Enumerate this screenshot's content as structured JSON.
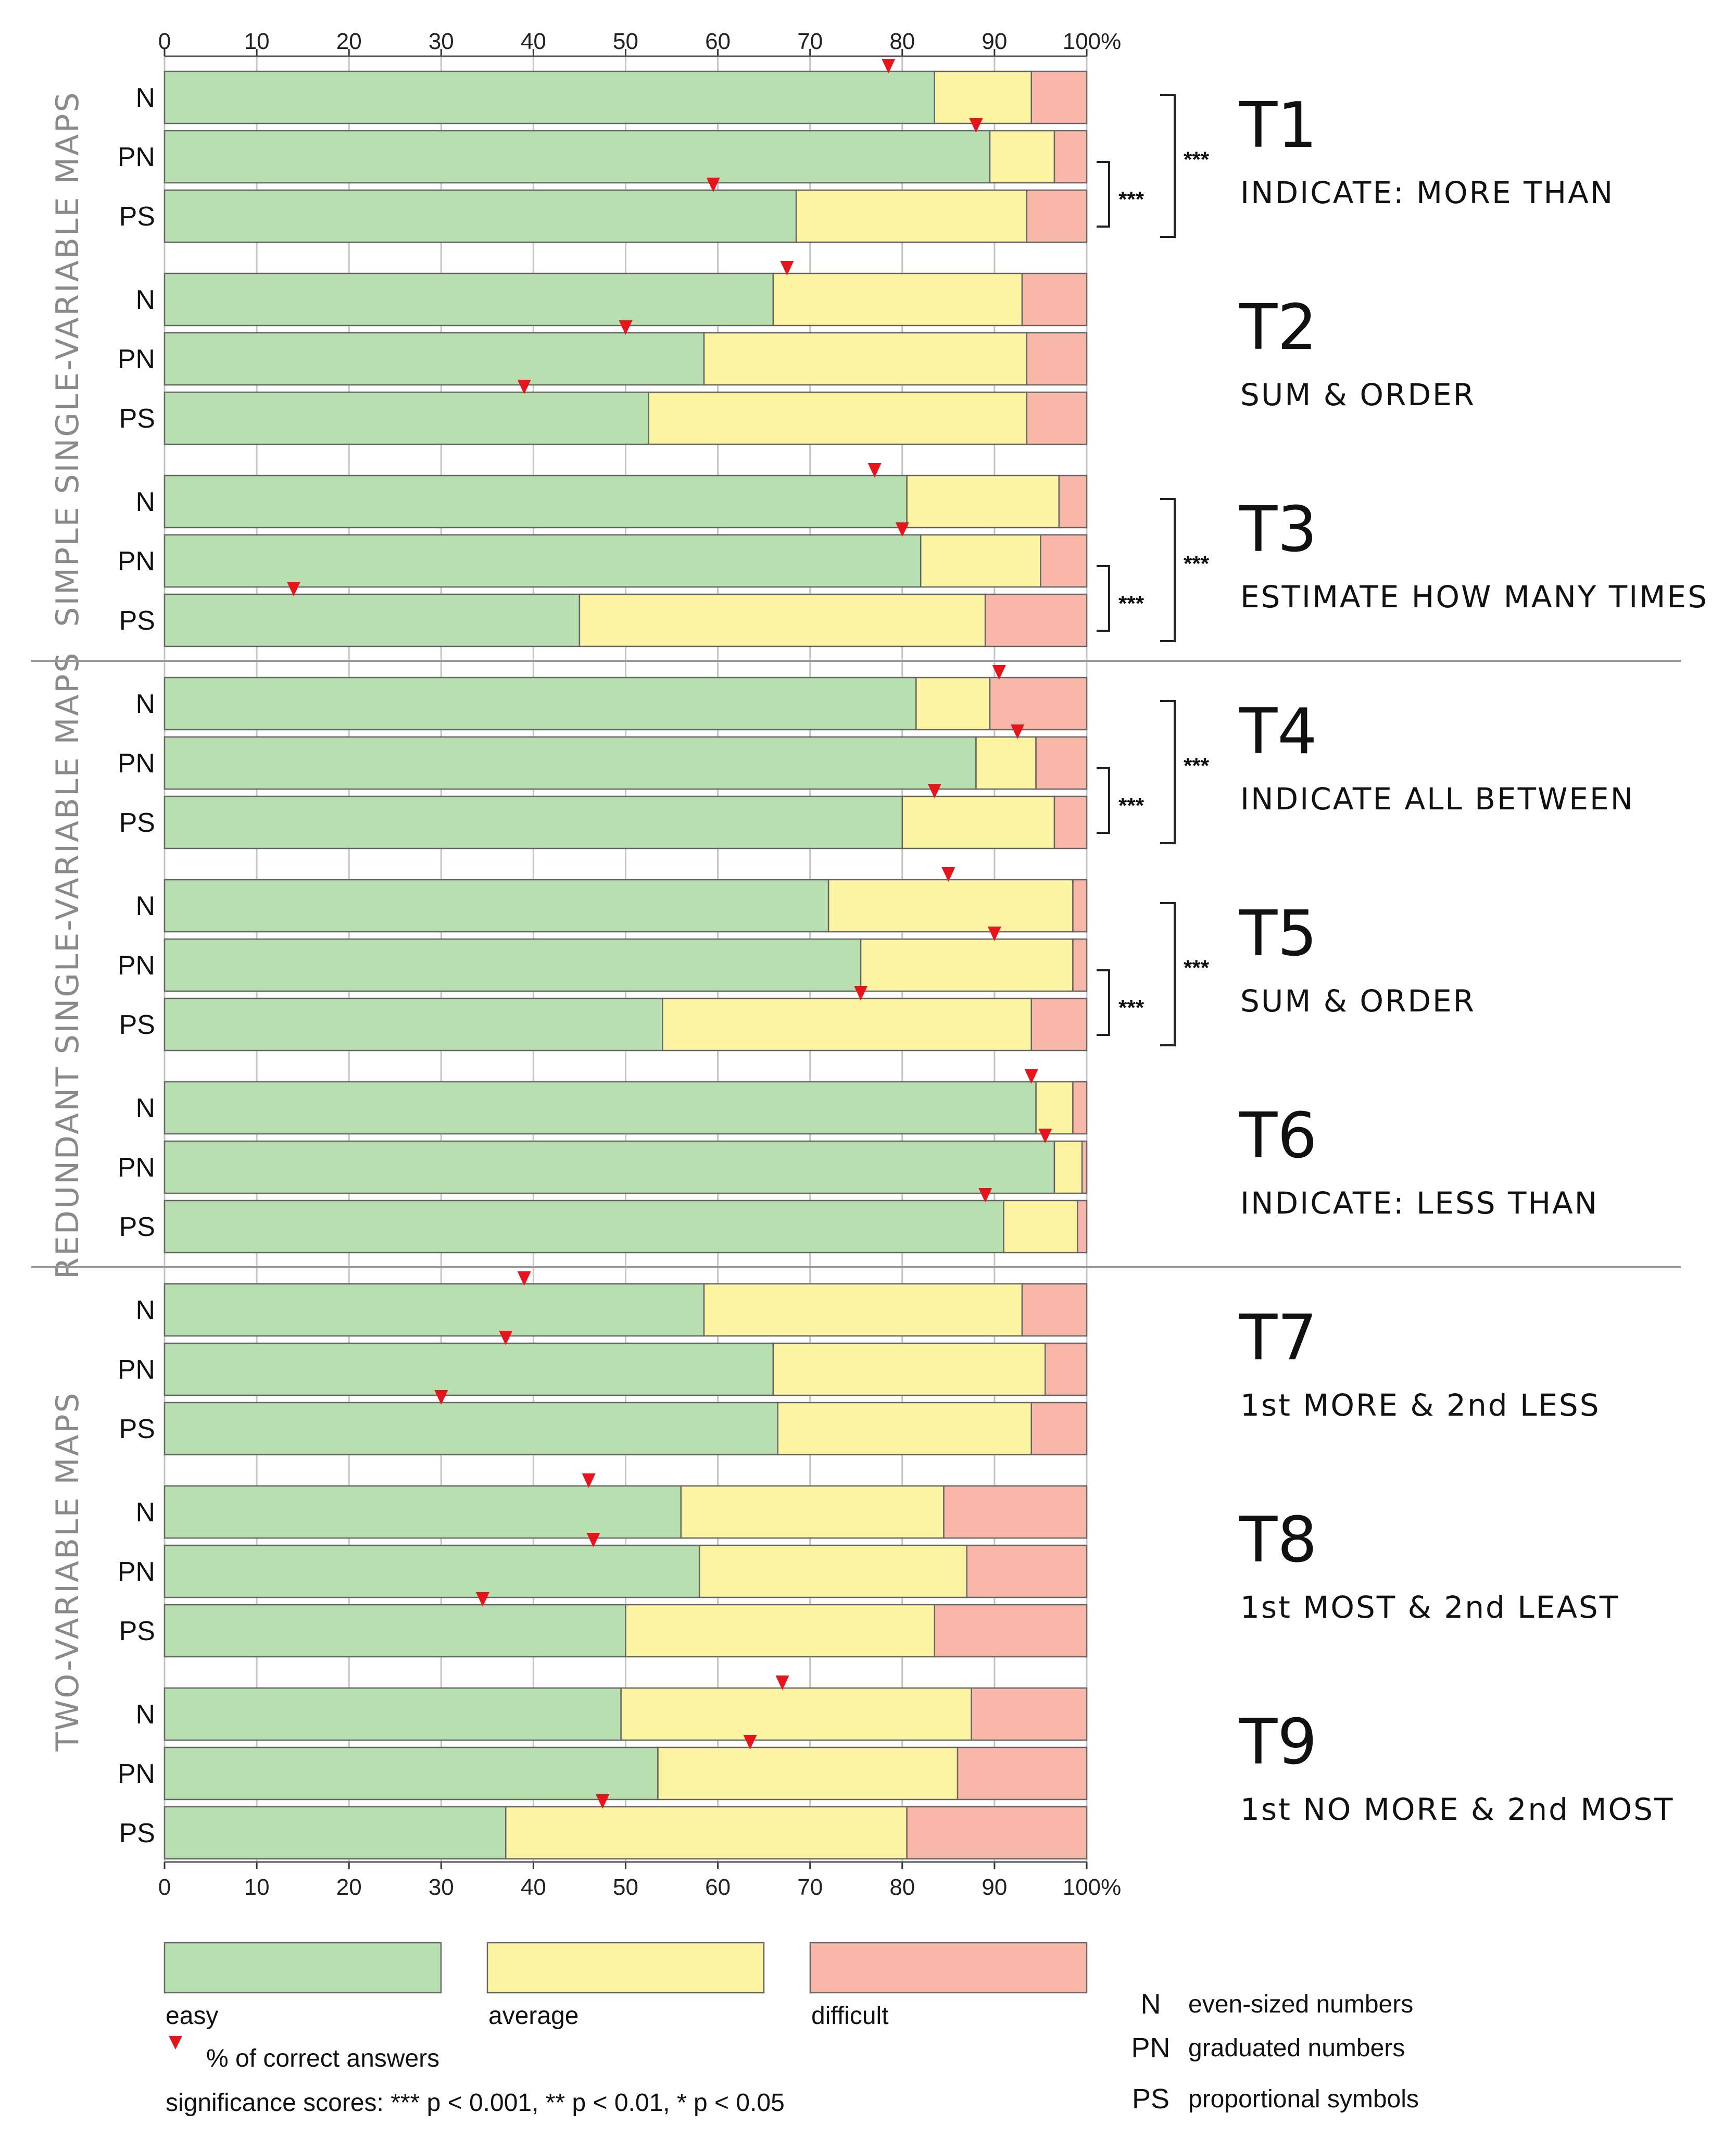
{
  "chart_data": {
    "type": "bar",
    "orientation": "horizontal-stacked-100",
    "axis": {
      "ticks": [
        "0",
        "10",
        "20",
        "30",
        "40",
        "50",
        "60",
        "70",
        "80",
        "90",
        "100%"
      ],
      "range": [
        0,
        100
      ]
    },
    "series": [
      {
        "name": "easy",
        "color": "#b7dfb0"
      },
      {
        "name": "average",
        "color": "#fcf4a3"
      },
      {
        "name": "difficult",
        "color": "#f9b7a9"
      }
    ],
    "marker": {
      "label": "% of correct answers",
      "color": "#e8141b"
    },
    "groups": [
      {
        "label": "SIMPLE SINGLE-VARIABLE MAPS",
        "tasks": [
          0,
          1,
          2
        ]
      },
      {
        "label": "REDUNDANT SINGLE-VARIABLE MAPS",
        "tasks": [
          3,
          4,
          5
        ]
      },
      {
        "label": "TWO-VARIABLE MAPS",
        "tasks": [
          6,
          7,
          8
        ]
      }
    ],
    "tasks": [
      {
        "id": "T1",
        "name": "INDICATE: MORE THAN",
        "sig_inner": "***",
        "sig_outer": "***",
        "rows": [
          {
            "code": "N",
            "easy": 83.5,
            "average": 10.5,
            "difficult": 6.0,
            "correct": 78.5
          },
          {
            "code": "PN",
            "easy": 89.5,
            "average": 7.0,
            "difficult": 3.5,
            "correct": 88.0
          },
          {
            "code": "PS",
            "easy": 68.5,
            "average": 25.0,
            "difficult": 6.5,
            "correct": 59.5
          }
        ]
      },
      {
        "id": "T2",
        "name": "SUM & ORDER",
        "sig_inner": "",
        "sig_outer": "",
        "rows": [
          {
            "code": "N",
            "easy": 66.0,
            "average": 27.0,
            "difficult": 7.0,
            "correct": 67.5
          },
          {
            "code": "PN",
            "easy": 58.5,
            "average": 35.0,
            "difficult": 6.5,
            "correct": 50.0
          },
          {
            "code": "PS",
            "easy": 52.5,
            "average": 41.0,
            "difficult": 6.5,
            "correct": 39.0
          }
        ]
      },
      {
        "id": "T3",
        "name": "ESTIMATE HOW MANY TIMES",
        "sig_inner": "***",
        "sig_outer": "***",
        "rows": [
          {
            "code": "N",
            "easy": 80.5,
            "average": 16.5,
            "difficult": 3.0,
            "correct": 77.0
          },
          {
            "code": "PN",
            "easy": 82.0,
            "average": 13.0,
            "difficult": 5.0,
            "correct": 80.0
          },
          {
            "code": "PS",
            "easy": 45.0,
            "average": 44.0,
            "difficult": 11.0,
            "correct": 14.0
          }
        ]
      },
      {
        "id": "T4",
        "name": "INDICATE ALL BETWEEN",
        "sig_inner": "***",
        "sig_outer": "***",
        "rows": [
          {
            "code": "N",
            "easy": 81.5,
            "average": 8.0,
            "difficult": 10.5,
            "correct": 90.5
          },
          {
            "code": "PN",
            "easy": 88.0,
            "average": 6.5,
            "difficult": 5.5,
            "correct": 92.5
          },
          {
            "code": "PS",
            "easy": 80.0,
            "average": 16.5,
            "difficult": 3.5,
            "correct": 83.5
          }
        ]
      },
      {
        "id": "T5",
        "name": "SUM & ORDER",
        "sig_inner": "***",
        "sig_outer": "***",
        "rows": [
          {
            "code": "N",
            "easy": 72.0,
            "average": 26.5,
            "difficult": 1.5,
            "correct": 85.0
          },
          {
            "code": "PN",
            "easy": 75.5,
            "average": 23.0,
            "difficult": 1.5,
            "correct": 90.0
          },
          {
            "code": "PS",
            "easy": 54.0,
            "average": 40.0,
            "difficult": 6.0,
            "correct": 75.5
          }
        ]
      },
      {
        "id": "T6",
        "name": "INDICATE: LESS THAN",
        "sig_inner": "",
        "sig_outer": "",
        "rows": [
          {
            "code": "N",
            "easy": 94.5,
            "average": 4.0,
            "difficult": 1.5,
            "correct": 94.0
          },
          {
            "code": "PN",
            "easy": 96.5,
            "average": 3.0,
            "difficult": 0.5,
            "correct": 95.5
          },
          {
            "code": "PS",
            "easy": 91.0,
            "average": 8.0,
            "difficult": 1.0,
            "correct": 89.0
          }
        ]
      },
      {
        "id": "T7",
        "name": "1st MORE & 2nd LESS",
        "sig_inner": "",
        "sig_outer": "",
        "rows": [
          {
            "code": "N",
            "easy": 58.5,
            "average": 34.5,
            "difficult": 7.0,
            "correct": 39.0
          },
          {
            "code": "PN",
            "easy": 66.0,
            "average": 29.5,
            "difficult": 4.5,
            "correct": 37.0
          },
          {
            "code": "PS",
            "easy": 66.5,
            "average": 27.5,
            "difficult": 6.0,
            "correct": 30.0
          }
        ]
      },
      {
        "id": "T8",
        "name": "1st MOST & 2nd LEAST",
        "sig_inner": "",
        "sig_outer": "",
        "rows": [
          {
            "code": "N",
            "easy": 56.0,
            "average": 28.5,
            "difficult": 15.5,
            "correct": 46.0
          },
          {
            "code": "PN",
            "easy": 58.0,
            "average": 29.0,
            "difficult": 13.0,
            "correct": 46.5
          },
          {
            "code": "PS",
            "easy": 50.0,
            "average": 33.5,
            "difficult": 16.5,
            "correct": 34.5
          }
        ]
      },
      {
        "id": "T9",
        "name": "1st NO MORE & 2nd MOST",
        "sig_inner": "",
        "sig_outer": "",
        "rows": [
          {
            "code": "N",
            "easy": 49.5,
            "average": 38.0,
            "difficult": 12.5,
            "correct": 67.0
          },
          {
            "code": "PN",
            "easy": 53.5,
            "average": 32.5,
            "difficult": 14.0,
            "correct": 63.5
          },
          {
            "code": "PS",
            "easy": 37.0,
            "average": 43.5,
            "difficult": 19.5,
            "correct": 47.5
          }
        ]
      }
    ]
  },
  "legend": {
    "categories": [
      {
        "label": "easy",
        "color": "#b7dfb0"
      },
      {
        "label": "average",
        "color": "#fcf4a3"
      },
      {
        "label": "difficult",
        "color": "#f9b7a9"
      }
    ],
    "marker_label": "% of correct answers",
    "significance": "significance scores: *** p < 0.001, ** p < 0.01, * p < 0.05",
    "codes": [
      {
        "code": "N",
        "text": "even-sized numbers"
      },
      {
        "code": "PN",
        "text": "graduated numbers"
      },
      {
        "code": "PS",
        "text": "proportional symbols"
      }
    ]
  }
}
